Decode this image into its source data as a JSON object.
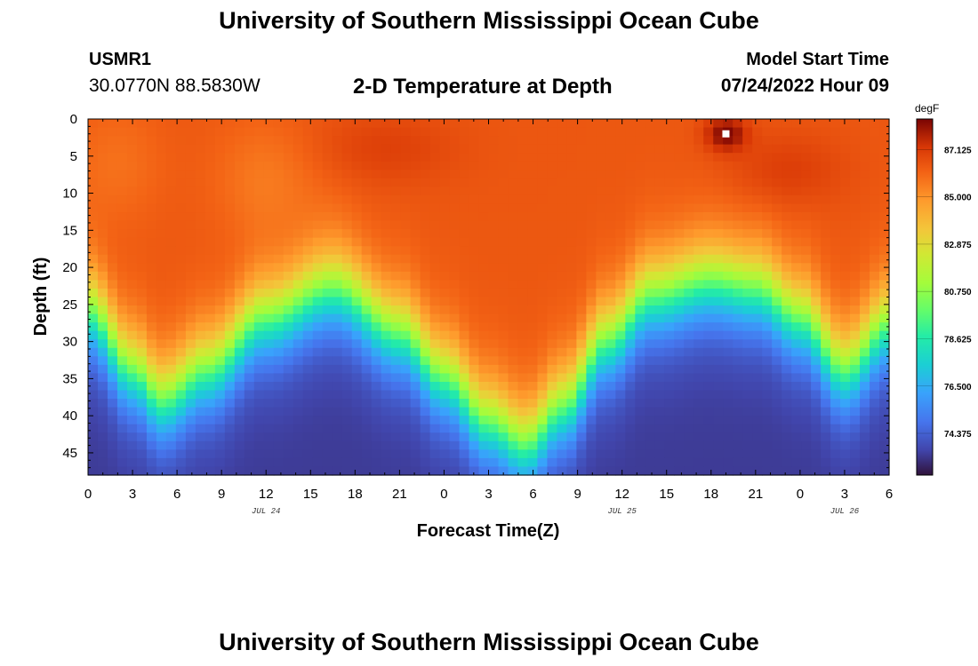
{
  "header": {
    "title": "University of Southern Mississippi Ocean Cube",
    "station_id": "USMR1",
    "coords": "30.0770N  88.5830W",
    "plot_title": "2-D Temperature at Depth",
    "model_start_label": "Model Start Time",
    "model_start_value": "07/24/2022 Hour 09"
  },
  "footer": {
    "title": "University of Southern Mississippi Ocean Cube"
  },
  "chart_data": {
    "type": "heatmap",
    "title": "2-D Temperature at Depth",
    "xlabel": "Forecast Time(Z)",
    "ylabel": "Depth (ft)",
    "units": "degF",
    "x_hours_range": [
      0,
      54
    ],
    "y_range": [
      0,
      48
    ],
    "x_tick_labels": [
      "0",
      "3",
      "6",
      "9",
      "12",
      "15",
      "18",
      "21",
      "0",
      "3",
      "6",
      "9",
      "12",
      "15",
      "18",
      "21",
      "0",
      "3",
      "6"
    ],
    "y_tick_labels": [
      "0",
      "5",
      "10",
      "15",
      "20",
      "25",
      "30",
      "35",
      "40",
      "45"
    ],
    "date_labels": [
      {
        "label": "JUL 24",
        "hour": 12
      },
      {
        "label": "JUL 25",
        "hour": 36
      },
      {
        "label": "JUL 26",
        "hour": 51
      }
    ],
    "colorbar": {
      "label": "degF",
      "min": 72.5,
      "max": 88.5,
      "tick_labels": [
        "87.125",
        "85.000",
        "82.875",
        "80.750",
        "78.625",
        "76.500",
        "74.375"
      ]
    },
    "thermocline_depth_ft": [
      {
        "hour": 0,
        "depth": 24
      },
      {
        "hour": 3,
        "depth": 32
      },
      {
        "hour": 5,
        "depth": 36
      },
      {
        "hour": 8,
        "depth": 32
      },
      {
        "hour": 12,
        "depth": 25
      },
      {
        "hour": 16.5,
        "depth": 21
      },
      {
        "hour": 21,
        "depth": 27
      },
      {
        "hour": 24,
        "depth": 33
      },
      {
        "hour": 27,
        "depth": 39
      },
      {
        "hour": 29.5,
        "depth": 42
      },
      {
        "hour": 32,
        "depth": 37
      },
      {
        "hour": 35,
        "depth": 28
      },
      {
        "hour": 38,
        "depth": 22
      },
      {
        "hour": 42,
        "depth": 20
      },
      {
        "hour": 45,
        "depth": 21
      },
      {
        "hour": 48,
        "depth": 25
      },
      {
        "hour": 51,
        "depth": 32
      },
      {
        "hour": 54,
        "depth": 26
      }
    ],
    "surface_temp_degF": 86.4,
    "bottom_temp_degF": 73.4,
    "warm_spot": {
      "hour": 43,
      "depth": 2,
      "value": 88.4
    }
  }
}
